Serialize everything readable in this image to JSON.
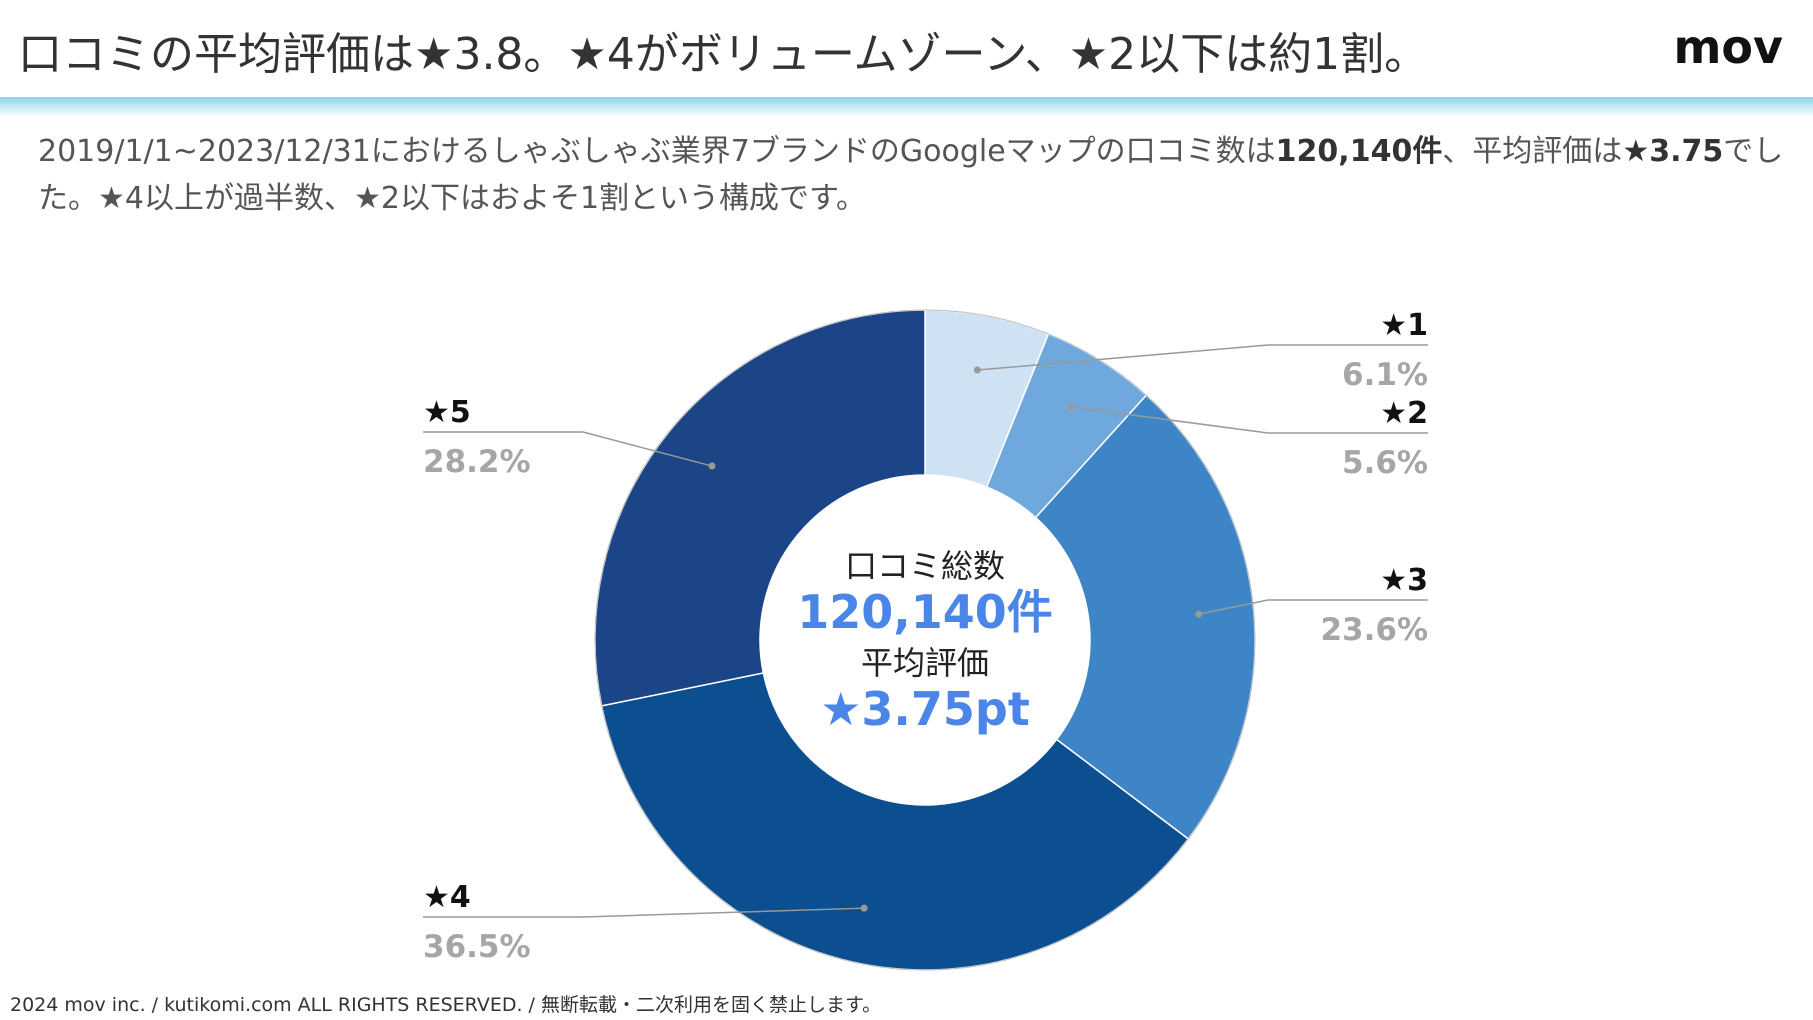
{
  "header": {
    "title": "口コミの平均評価は★3.8。★4がボリュームゾーン、★2以下は約1割。",
    "logo": "mov"
  },
  "summary": {
    "part1": "2019/1/1~2023/12/31におけるしゃぶしゃぶ業界7ブランドのGoogleマップの口コミ数は",
    "count_bold": "120,140件",
    "part2": "、平均評価は",
    "rating_bold": "★3.75",
    "part3": "でした。★4以上が過半数、★2以下はおよそ1割という構成です。"
  },
  "center": {
    "label1": "口コミ総数",
    "value1": "120,140件",
    "label2": "平均評価",
    "value2": "★3.75pt"
  },
  "chart_data": {
    "type": "pie",
    "donut": true,
    "title": "",
    "unit": "%",
    "categories": [
      "★1",
      "★2",
      "★3",
      "★4",
      "★5"
    ],
    "values": [
      6.1,
      5.6,
      23.6,
      36.5,
      28.2
    ],
    "value_labels": [
      "6.1%",
      "5.6%",
      "23.6%",
      "36.5%",
      "28.2%"
    ],
    "colors": [
      "#cfe2f3",
      "#6fa8dc",
      "#3d85c6",
      "#0b4f91",
      "#1c4587"
    ]
  },
  "colors": {
    "label_value": "#a6a6a6",
    "center_value": "#4a86e8",
    "leader_line": "#999999"
  },
  "footer": {
    "copyright": "2024 mov inc. / kutikomi.com ALL RIGHTS RESERVED. / 無断転載・二次利用を固く禁止します。"
  }
}
